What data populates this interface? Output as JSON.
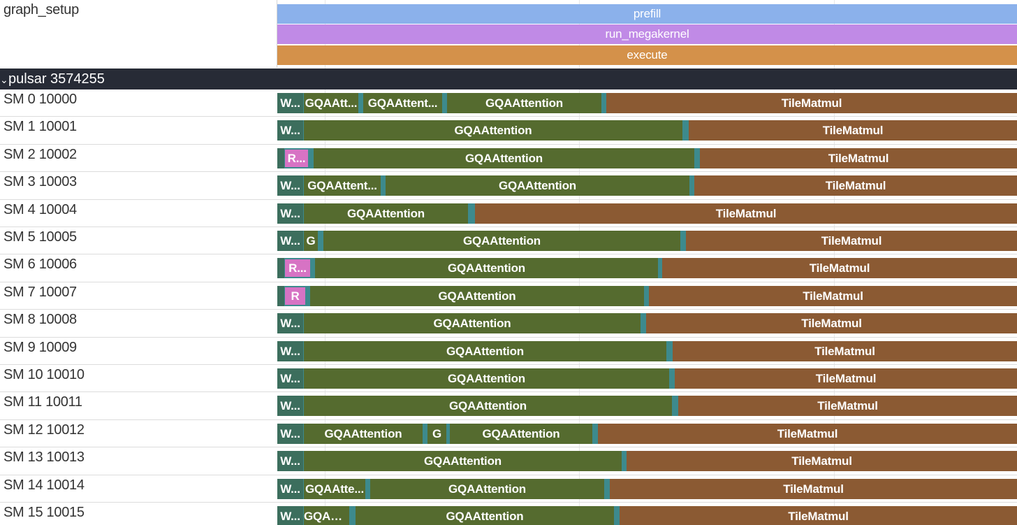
{
  "colors": {
    "prefill": "#8bb1eb",
    "run_megakernel": "#c08ae6",
    "execute": "#d4914a",
    "W": "#3c6e5d",
    "R": "#d773c4",
    "GQAAttention": "#556b2f",
    "TileMatmul": "#8b5a33",
    "sep": "#3d8a8d",
    "header_bg": "#272b36"
  },
  "graph_setup": {
    "label": "graph_setup",
    "slices": [
      {
        "name": "prefill",
        "color": "prefill"
      },
      {
        "name": "run_megakernel",
        "color": "run_megakernel"
      },
      {
        "name": "execute",
        "color": "execute"
      }
    ]
  },
  "process": {
    "chevron": "⌄",
    "label": "pulsar 3574255"
  },
  "tracks": [
    {
      "label": "SM 0 10000",
      "slices": [
        {
          "s": 0,
          "e": 37,
          "text": "W...",
          "c": "W"
        },
        {
          "s": 38,
          "e": 116,
          "text": "GQAAtt...",
          "c": "GQAAttention"
        },
        {
          "s": 123,
          "e": 236,
          "text": "GQAAttent...",
          "c": "GQAAttention"
        },
        {
          "s": 243,
          "e": 464,
          "text": "GQAAttention",
          "c": "GQAAttention"
        },
        {
          "s": 471,
          "e": 1059,
          "text": "TileMatmul",
          "c": "TileMatmul"
        }
      ]
    },
    {
      "label": "SM 1 10001",
      "slices": [
        {
          "s": 0,
          "e": 37,
          "text": "W...",
          "c": "W"
        },
        {
          "s": 38,
          "e": 580,
          "text": "GQAAttention",
          "c": "GQAAttention"
        },
        {
          "s": 589,
          "e": 1059,
          "text": "TileMatmul",
          "c": "TileMatmul"
        }
      ]
    },
    {
      "label": "SM 2 10002",
      "slices": [
        {
          "s": 0,
          "e": 10,
          "text": "",
          "c": "W"
        },
        {
          "s": 11,
          "e": 44,
          "text": "R...",
          "c": "R"
        },
        {
          "s": 52,
          "e": 597,
          "text": "GQAAttention",
          "c": "GQAAttention"
        },
        {
          "s": 605,
          "e": 1059,
          "text": "TileMatmul",
          "c": "TileMatmul"
        }
      ]
    },
    {
      "label": "SM 3 10003",
      "slices": [
        {
          "s": 0,
          "e": 37,
          "text": "W...",
          "c": "W"
        },
        {
          "s": 38,
          "e": 148,
          "text": "GQAAttent...",
          "c": "GQAAttention"
        },
        {
          "s": 155,
          "e": 590,
          "text": "GQAAttention",
          "c": "GQAAttention"
        },
        {
          "s": 597,
          "e": 1059,
          "text": "TileMatmul",
          "c": "TileMatmul"
        }
      ]
    },
    {
      "label": "SM 4 10004",
      "slices": [
        {
          "s": 0,
          "e": 37,
          "text": "W...",
          "c": "W"
        },
        {
          "s": 38,
          "e": 273,
          "text": "GQAAttention",
          "c": "GQAAttention"
        },
        {
          "s": 283,
          "e": 1059,
          "text": "TileMatmul",
          "c": "TileMatmul"
        }
      ]
    },
    {
      "label": "SM 5 10005",
      "slices": [
        {
          "s": 0,
          "e": 37,
          "text": "W...",
          "c": "W"
        },
        {
          "s": 38,
          "e": 58,
          "text": "G",
          "c": "GQAAttention"
        },
        {
          "s": 66,
          "e": 577,
          "text": "GQAAttention",
          "c": "GQAAttention"
        },
        {
          "s": 585,
          "e": 1059,
          "text": "TileMatmul",
          "c": "TileMatmul"
        }
      ]
    },
    {
      "label": "SM 6 10006",
      "slices": [
        {
          "s": 0,
          "e": 10,
          "text": "",
          "c": "W"
        },
        {
          "s": 11,
          "e": 47,
          "text": "R...",
          "c": "R"
        },
        {
          "s": 54,
          "e": 545,
          "text": "GQAAttention",
          "c": "GQAAttention"
        },
        {
          "s": 551,
          "e": 1059,
          "text": "TileMatmul",
          "c": "TileMatmul"
        }
      ]
    },
    {
      "label": "SM 7 10007",
      "slices": [
        {
          "s": 0,
          "e": 10,
          "text": "",
          "c": "W"
        },
        {
          "s": 11,
          "e": 40,
          "text": "R",
          "c": "R"
        },
        {
          "s": 47,
          "e": 525,
          "text": "GQAAttention",
          "c": "GQAAttention"
        },
        {
          "s": 532,
          "e": 1059,
          "text": "TileMatmul",
          "c": "TileMatmul"
        }
      ]
    },
    {
      "label": "SM 8 10008",
      "slices": [
        {
          "s": 0,
          "e": 37,
          "text": "W...",
          "c": "W"
        },
        {
          "s": 38,
          "e": 520,
          "text": "GQAAttention",
          "c": "GQAAttention"
        },
        {
          "s": 528,
          "e": 1059,
          "text": "TileMatmul",
          "c": "TileMatmul"
        }
      ]
    },
    {
      "label": "SM 9 10009",
      "slices": [
        {
          "s": 0,
          "e": 37,
          "text": "W...",
          "c": "W"
        },
        {
          "s": 38,
          "e": 557,
          "text": "GQAAttention",
          "c": "GQAAttention"
        },
        {
          "s": 566,
          "e": 1059,
          "text": "TileMatmul",
          "c": "TileMatmul"
        }
      ]
    },
    {
      "label": "SM 10 10010",
      "slices": [
        {
          "s": 0,
          "e": 37,
          "text": "W...",
          "c": "W"
        },
        {
          "s": 38,
          "e": 561,
          "text": "GQAAttention",
          "c": "GQAAttention"
        },
        {
          "s": 569,
          "e": 1059,
          "text": "TileMatmul",
          "c": "TileMatmul"
        }
      ]
    },
    {
      "label": "SM 11 10011",
      "slices": [
        {
          "s": 0,
          "e": 37,
          "text": "W...",
          "c": "W"
        },
        {
          "s": 38,
          "e": 565,
          "text": "GQAAttention",
          "c": "GQAAttention"
        },
        {
          "s": 574,
          "e": 1059,
          "text": "TileMatmul",
          "c": "TileMatmul"
        }
      ]
    },
    {
      "label": "SM 12 10012",
      "slices": [
        {
          "s": 0,
          "e": 37,
          "text": "W...",
          "c": "W"
        },
        {
          "s": 38,
          "e": 208,
          "text": "GQAAttention",
          "c": "GQAAttention"
        },
        {
          "s": 215,
          "e": 242,
          "text": "G",
          "c": "GQAAttention"
        },
        {
          "s": 247,
          "e": 451,
          "text": "GQAAttention",
          "c": "GQAAttention"
        },
        {
          "s": 459,
          "e": 1059,
          "text": "TileMatmul",
          "c": "TileMatmul"
        }
      ]
    },
    {
      "label": "SM 13 10013",
      "slices": [
        {
          "s": 0,
          "e": 37,
          "text": "W...",
          "c": "W"
        },
        {
          "s": 38,
          "e": 493,
          "text": "GQAAttention",
          "c": "GQAAttention"
        },
        {
          "s": 500,
          "e": 1059,
          "text": "TileMatmul",
          "c": "TileMatmul"
        }
      ]
    },
    {
      "label": "SM 14 10014",
      "slices": [
        {
          "s": 0,
          "e": 37,
          "text": "W...",
          "c": "W"
        },
        {
          "s": 38,
          "e": 126,
          "text": "GQAAtte...",
          "c": "GQAAttention"
        },
        {
          "s": 133,
          "e": 468,
          "text": "GQAAttention",
          "c": "GQAAttention"
        },
        {
          "s": 476,
          "e": 1059,
          "text": "TileMatmul",
          "c": "TileMatmul"
        }
      ]
    },
    {
      "label": "SM 15 10015",
      "slices": [
        {
          "s": 0,
          "e": 37,
          "text": "W...",
          "c": "W"
        },
        {
          "s": 38,
          "e": 103,
          "text": "GQAAt...",
          "c": "GQAAttention"
        },
        {
          "s": 112,
          "e": 482,
          "text": "GQAAttention",
          "c": "GQAAttention"
        },
        {
          "s": 490,
          "e": 1059,
          "text": "TileMatmul",
          "c": "TileMatmul"
        }
      ]
    }
  ]
}
